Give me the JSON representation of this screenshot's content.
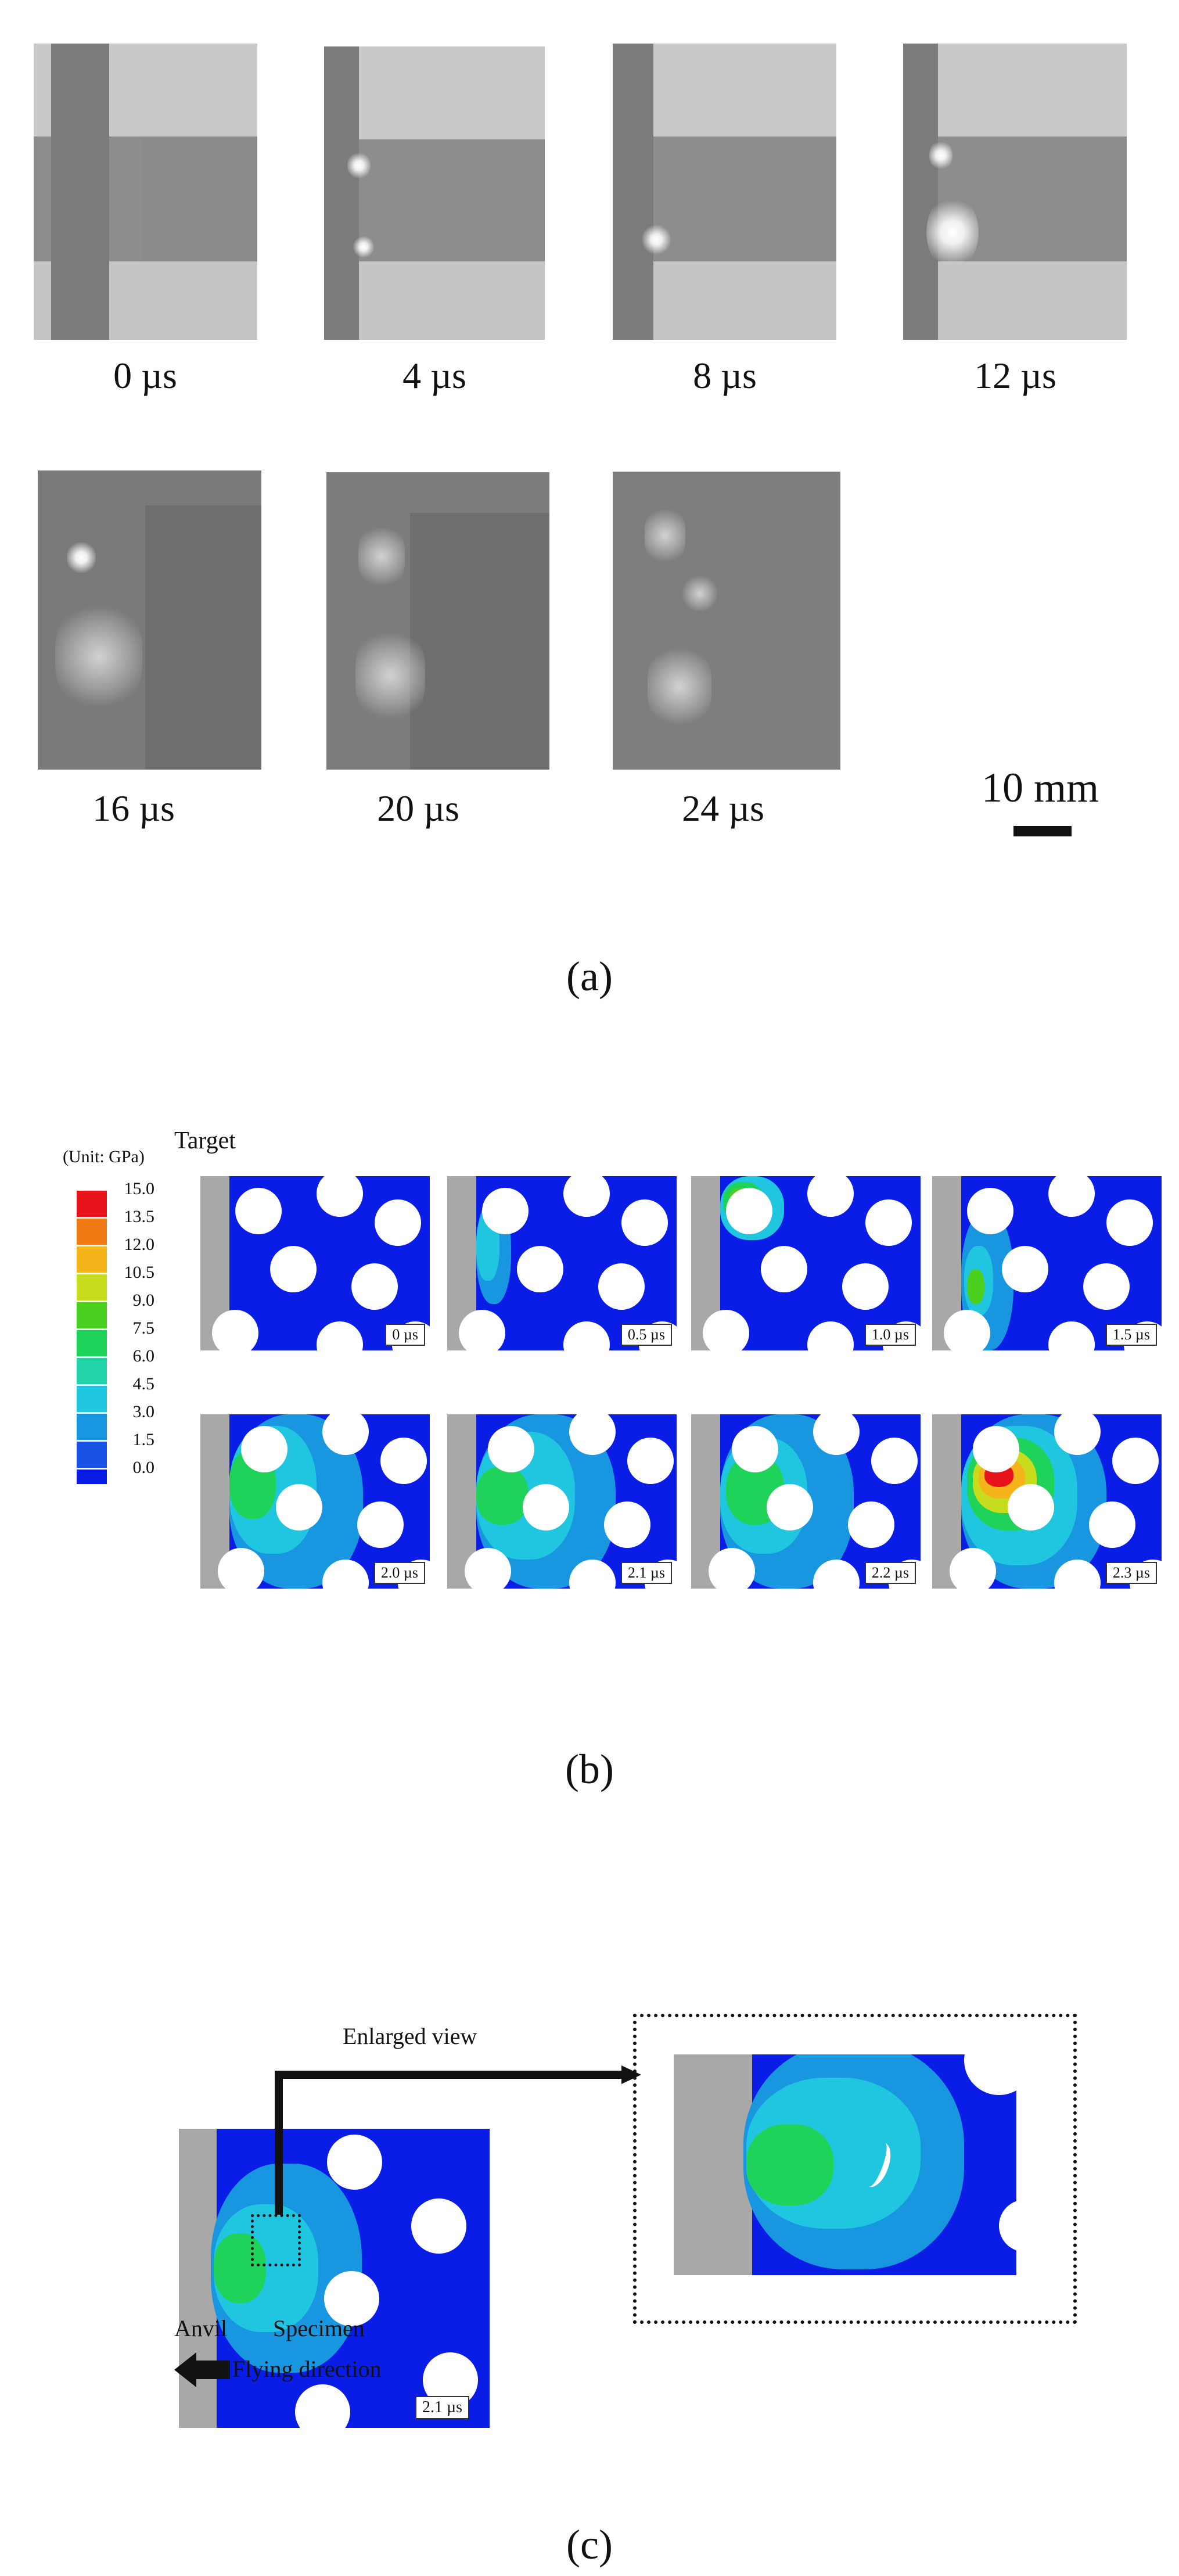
{
  "panel_a": {
    "times": [
      "0 µs",
      "4 µs",
      "8 µs",
      "12 µs",
      "16 µs",
      "20 µs",
      "24 µs"
    ],
    "scale_bar": "10 mm",
    "caption": "(a)"
  },
  "panel_b": {
    "unit": "(Unit: GPa)",
    "target_label": "Target",
    "legend_values": [
      "15.0",
      "13.5",
      "12.0",
      "10.5",
      "9.0",
      "7.5",
      "6.0",
      "4.5",
      "3.0",
      "1.5",
      "0.0"
    ],
    "legend_colors": [
      "#e8141b",
      "#f07a14",
      "#f4b41a",
      "#c8dc1e",
      "#4cd020",
      "#1ed25a",
      "#22d2a8",
      "#20c6e0",
      "#1896e0",
      "#1a52e6",
      "#0a1de6"
    ],
    "times": [
      "0 µs",
      "0.5 µs",
      "1.0 µs",
      "1.5 µs",
      "2.0 µs",
      "2.1 µs",
      "2.2 µs",
      "2.3 µs"
    ],
    "caption": "(b)"
  },
  "panel_c": {
    "enlarged_label": "Enlarged view",
    "time": "2.1 µs",
    "anvil_label": "Anvil",
    "specimen_label": "Specimen",
    "direction_label": "Flying direction",
    "caption": "(c)"
  }
}
